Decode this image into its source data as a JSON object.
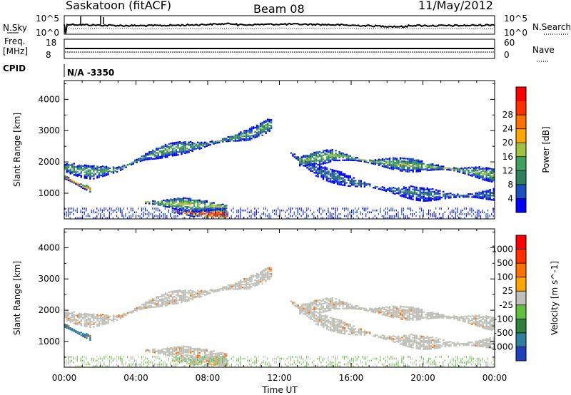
{
  "header": {
    "station": "Saskatoon (fitACF)",
    "beam": "Beam 08",
    "date": "11/May/2012"
  },
  "panels": {
    "nsky": {
      "left_label": "N.Sky",
      "left_ticks": [
        "10^5",
        "10^0"
      ],
      "right_ticks": [
        "10^5",
        "10^0"
      ],
      "right_label": "N.Search"
    },
    "freq": {
      "left_label_1": "Freq.",
      "left_label_2": "[MHz]",
      "left_ticks": [
        "18",
        "8"
      ],
      "right_ticks": [
        "60",
        "0"
      ],
      "right_label": "Nave"
    },
    "cpid": {
      "label": "CPID",
      "value": "N/A -3350"
    }
  },
  "colors": {
    "power_scale": [
      "#0000ff",
      "#1e4fbf",
      "#2f7f5f",
      "#3fa05f",
      "#a0c040",
      "#ffa500",
      "#ff7000",
      "#ff3000",
      "#ff0000"
    ],
    "velocity_scale": [
      "#1e3fbf",
      "#2f7f9f",
      "#2f7f3f",
      "#60c040",
      "#c0c0b8",
      "#ffa500",
      "#ff7000",
      "#ff3000",
      "#ff0000"
    ]
  },
  "chart_data": [
    {
      "type": "heatmap",
      "panel": "power",
      "xlabel": "Time UT",
      "ylabel": "Slant Range [km]",
      "x_ticks": [
        "00:00",
        "04:00",
        "08:00",
        "12:00",
        "16:00",
        "20:00",
        "00:00"
      ],
      "y_ticks": [
        1000,
        2000,
        3000,
        4000
      ],
      "ylim": [
        180,
        4600
      ],
      "colorbar": {
        "label": "Power [dB]",
        "ticks": [
          4,
          8,
          12,
          16,
          20,
          24,
          28
        ]
      },
      "echo_bands": [
        {
          "desc_hours": [
            0.0,
            1.5,
            3.0,
            4.5,
            6.0,
            7.5,
            9.0,
            10.5,
            11.5
          ],
          "range_km": [
            1800,
            1650,
            1750,
            2150,
            2400,
            2500,
            2700,
            2900,
            3200
          ],
          "power": 14
        },
        {
          "desc_hours": [
            12.5,
            14.0,
            16.0,
            18.0,
            20.0,
            22.0,
            24.0
          ],
          "range_km": [
            2300,
            1700,
            1350,
            1100,
            950,
            900,
            950
          ],
          "power": 10
        },
        {
          "desc_hours": [
            13.0,
            15.0,
            17.0,
            19.0,
            21.0,
            23.0,
            24.0
          ],
          "range_km": [
            2000,
            2200,
            2000,
            1900,
            1800,
            1650,
            1550
          ],
          "power": 16
        },
        {
          "desc_hours": [
            6.0,
            7.0,
            8.0,
            9.0
          ],
          "range_km": [
            400,
            350,
            320,
            300
          ],
          "power": 28
        },
        {
          "desc_hours": [
            0.0,
            0.5,
            1.0,
            1.5
          ],
          "range_km": [
            1500,
            1350,
            1200,
            1100
          ],
          "power": 24
        },
        {
          "desc_hours": [
            4.5,
            6.0,
            7.5,
            9.0
          ],
          "range_km": [
            700,
            650,
            600,
            550
          ],
          "power": 18
        }
      ]
    },
    {
      "type": "heatmap",
      "panel": "velocity",
      "xlabel": "Time UT",
      "ylabel": "Slant Range [km]",
      "x_ticks": [
        "00:00",
        "04:00",
        "08:00",
        "12:00",
        "16:00",
        "20:00",
        "00:00"
      ],
      "y_ticks": [
        1000,
        2000,
        3000,
        4000
      ],
      "ylim": [
        180,
        4600
      ],
      "colorbar": {
        "label": "Velocity [m s^-1]",
        "ticks": [
          1000,
          500,
          100,
          25,
          -25,
          -100,
          -500,
          -1000
        ]
      }
    }
  ]
}
